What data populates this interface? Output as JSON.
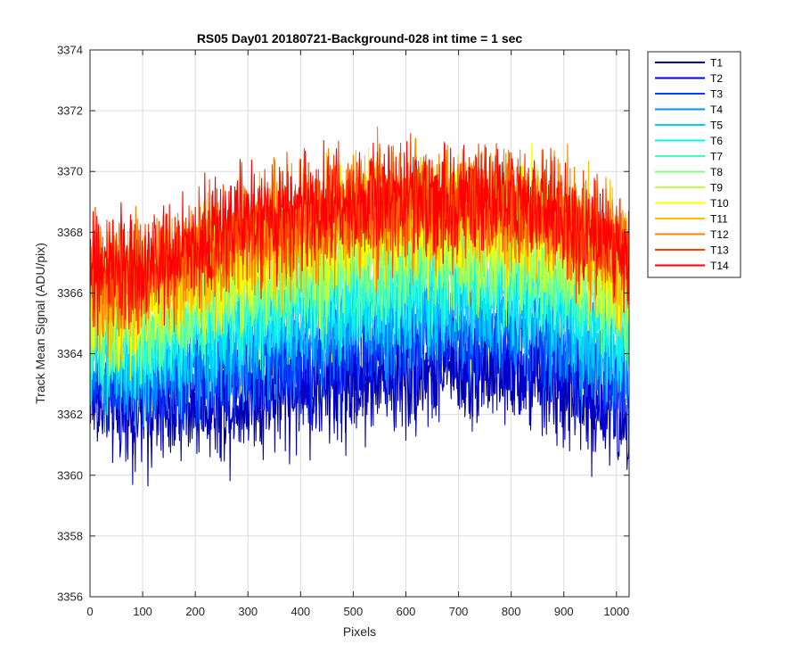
{
  "chart_data": {
    "type": "line",
    "title": "RS05 Day01 20180721-Background-028 int time = 1 sec",
    "xlabel": "Pixels",
    "ylabel": "Track Mean Signal (ADU/pix)",
    "xlim": [
      0,
      1024
    ],
    "ylim": [
      3356,
      3374
    ],
    "xticks": [
      0,
      100,
      200,
      300,
      400,
      500,
      600,
      700,
      800,
      900,
      1000
    ],
    "yticks": [
      3356,
      3358,
      3360,
      3362,
      3364,
      3366,
      3368,
      3370,
      3372,
      3374
    ],
    "grid": true,
    "legend_position": "outside-top-right",
    "profile_x": [
      0,
      50,
      100,
      150,
      200,
      250,
      300,
      350,
      400,
      450,
      500,
      550,
      600,
      650,
      700,
      750,
      800,
      850,
      900,
      950,
      1000,
      1024
    ],
    "series": [
      {
        "name": "T1",
        "color": "#0000AA",
        "noise": 1.4,
        "values": [
          3362.5,
          3362.2,
          3362.0,
          3362.2,
          3362.4,
          3362.4,
          3362.5,
          3362.6,
          3362.7,
          3362.8,
          3363.0,
          3363.2,
          3363.3,
          3363.4,
          3363.4,
          3363.4,
          3363.3,
          3363.1,
          3362.8,
          3362.4,
          3362.0,
          3361.8
        ]
      },
      {
        "name": "T2",
        "color": "#0000D8",
        "noise": 1.3,
        "values": [
          3362.9,
          3362.6,
          3362.5,
          3362.7,
          3362.9,
          3363.0,
          3363.1,
          3363.2,
          3363.3,
          3363.4,
          3363.6,
          3363.8,
          3363.9,
          3364.0,
          3364.0,
          3364.0,
          3363.9,
          3363.7,
          3363.4,
          3363.0,
          3362.6,
          3362.4
        ]
      },
      {
        "name": "T3",
        "color": "#0040FF",
        "noise": 1.3,
        "values": [
          3363.2,
          3363.0,
          3362.9,
          3363.1,
          3363.4,
          3363.5,
          3363.7,
          3363.8,
          3364.0,
          3364.1,
          3364.3,
          3364.4,
          3364.5,
          3364.6,
          3364.6,
          3364.6,
          3364.5,
          3364.3,
          3364.0,
          3363.6,
          3363.2,
          3363.0
        ]
      },
      {
        "name": "T4",
        "color": "#0090FF",
        "noise": 1.3,
        "values": [
          3363.6,
          3363.4,
          3363.3,
          3363.6,
          3363.9,
          3364.1,
          3364.3,
          3364.5,
          3364.6,
          3364.7,
          3364.9,
          3365.0,
          3365.1,
          3365.2,
          3365.2,
          3365.2,
          3365.1,
          3364.9,
          3364.6,
          3364.2,
          3363.8,
          3363.6
        ]
      },
      {
        "name": "T5",
        "color": "#00D0FF",
        "noise": 1.3,
        "values": [
          3364.0,
          3363.8,
          3363.7,
          3364.0,
          3364.4,
          3364.6,
          3364.8,
          3365.0,
          3365.2,
          3365.3,
          3365.5,
          3365.6,
          3365.7,
          3365.8,
          3365.8,
          3365.8,
          3365.7,
          3365.5,
          3365.2,
          3364.8,
          3364.3,
          3364.1
        ]
      },
      {
        "name": "T6",
        "color": "#10F0F0",
        "noise": 1.3,
        "values": [
          3364.3,
          3364.1,
          3364.1,
          3364.4,
          3364.8,
          3365.1,
          3365.3,
          3365.5,
          3365.7,
          3365.8,
          3366.0,
          3366.1,
          3366.2,
          3366.3,
          3366.3,
          3366.3,
          3366.2,
          3366.0,
          3365.7,
          3365.3,
          3364.8,
          3364.6
        ]
      },
      {
        "name": "T7",
        "color": "#40FFC0",
        "noise": 1.3,
        "values": [
          3364.6,
          3364.5,
          3364.5,
          3364.9,
          3365.3,
          3365.6,
          3365.8,
          3366.0,
          3366.2,
          3366.3,
          3366.5,
          3366.6,
          3366.7,
          3366.8,
          3366.8,
          3366.8,
          3366.7,
          3366.5,
          3366.2,
          3365.8,
          3365.3,
          3365.1
        ]
      },
      {
        "name": "T8",
        "color": "#80FF80",
        "noise": 1.3,
        "values": [
          3365.0,
          3364.9,
          3364.9,
          3365.3,
          3365.7,
          3366.0,
          3366.3,
          3366.5,
          3366.7,
          3366.8,
          3367.0,
          3367.1,
          3367.2,
          3367.3,
          3367.3,
          3367.3,
          3367.2,
          3367.0,
          3366.7,
          3366.3,
          3365.8,
          3365.6
        ]
      },
      {
        "name": "T9",
        "color": "#C0FF40",
        "noise": 1.4,
        "values": [
          3365.4,
          3365.3,
          3365.3,
          3365.8,
          3366.2,
          3366.5,
          3366.8,
          3367.0,
          3367.2,
          3367.3,
          3367.5,
          3367.6,
          3367.7,
          3367.8,
          3367.8,
          3367.8,
          3367.7,
          3367.5,
          3367.2,
          3366.8,
          3366.3,
          3366.1
        ]
      },
      {
        "name": "T10",
        "color": "#FFFF00",
        "noise": 1.4,
        "values": [
          3365.8,
          3365.7,
          3365.8,
          3366.2,
          3366.6,
          3367.0,
          3367.2,
          3367.5,
          3367.7,
          3367.8,
          3368.0,
          3368.1,
          3368.2,
          3368.3,
          3368.3,
          3368.3,
          3368.2,
          3368.0,
          3367.7,
          3367.3,
          3366.8,
          3366.6
        ]
      },
      {
        "name": "T11",
        "color": "#FFC000",
        "noise": 1.4,
        "values": [
          3366.1,
          3366.0,
          3366.1,
          3366.5,
          3366.9,
          3367.3,
          3367.6,
          3367.8,
          3368.0,
          3368.2,
          3368.3,
          3368.4,
          3368.5,
          3368.6,
          3368.6,
          3368.6,
          3368.5,
          3368.3,
          3368.0,
          3367.6,
          3367.1,
          3366.9
        ]
      },
      {
        "name": "T12",
        "color": "#FF8000",
        "noise": 1.5,
        "values": [
          3366.4,
          3366.3,
          3366.4,
          3366.8,
          3367.2,
          3367.6,
          3367.9,
          3368.1,
          3368.3,
          3368.5,
          3368.6,
          3368.7,
          3368.8,
          3368.9,
          3368.9,
          3368.9,
          3368.8,
          3368.6,
          3368.3,
          3367.9,
          3367.4,
          3367.2
        ]
      },
      {
        "name": "T13",
        "color": "#FF4000",
        "noise": 1.4,
        "values": [
          3366.6,
          3366.5,
          3366.6,
          3367.0,
          3367.4,
          3367.8,
          3368.1,
          3368.3,
          3368.5,
          3368.7,
          3368.8,
          3368.9,
          3369.0,
          3369.0,
          3369.0,
          3369.0,
          3368.9,
          3368.7,
          3368.4,
          3368.0,
          3367.5,
          3367.3
        ]
      },
      {
        "name": "T14",
        "color": "#FF0000",
        "noise": 1.3,
        "values": [
          3366.8,
          3366.7,
          3366.8,
          3367.2,
          3367.6,
          3368.0,
          3368.3,
          3368.5,
          3368.7,
          3368.9,
          3369.0,
          3369.1,
          3369.1,
          3369.1,
          3369.1,
          3369.1,
          3369.0,
          3368.8,
          3368.5,
          3368.1,
          3367.6,
          3367.4
        ]
      }
    ]
  }
}
